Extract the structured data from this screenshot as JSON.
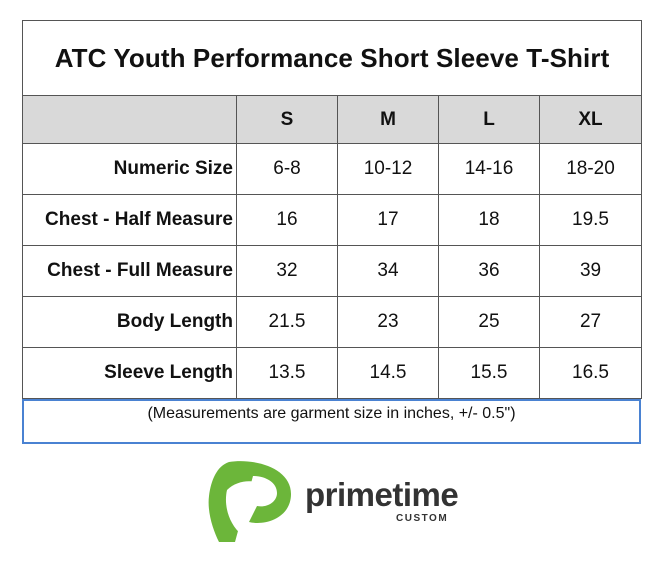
{
  "table": {
    "title": "ATC Youth Performance Short Sleeve T-Shirt",
    "header_blank": "",
    "sizes": [
      "S",
      "M",
      "L",
      "XL"
    ],
    "rows": [
      {
        "label": "Numeric Size",
        "values": [
          "6-8",
          "10-12",
          "14-16",
          "18-20"
        ]
      },
      {
        "label": "Chest - Half Measure",
        "values": [
          "16",
          "17",
          "18",
          "19.5"
        ]
      },
      {
        "label": "Chest - Full Measure",
        "values": [
          "32",
          "34",
          "36",
          "39"
        ]
      },
      {
        "label": "Body Length",
        "values": [
          "21.5",
          "23",
          "25",
          "27"
        ]
      },
      {
        "label": "Sleeve Length",
        "values": [
          "13.5",
          "14.5",
          "15.5",
          "16.5"
        ]
      }
    ],
    "note": "(Measurements are garment size in inches, +/- 0.5\")"
  },
  "logo": {
    "brand_name": "primetime",
    "brand_sub": "CUSTOM",
    "accent_color": "#6cb63a",
    "icon": "primetime-p-logo-icon"
  }
}
